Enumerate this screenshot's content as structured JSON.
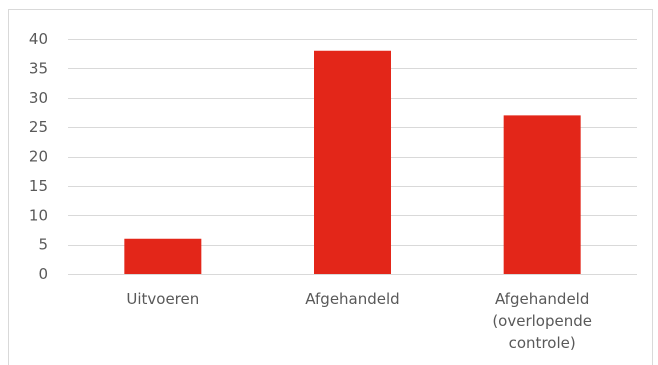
{
  "chart_data": {
    "type": "bar",
    "categories": [
      "Uitvoeren",
      "Afgehandeld",
      "Afgehandeld (overlopende controle)"
    ],
    "category_label_lines": [
      [
        "Uitvoeren"
      ],
      [
        "Afgehandeld"
      ],
      [
        "Afgehandeld",
        "(overlopende",
        "controle)"
      ]
    ],
    "values": [
      6,
      38,
      27
    ],
    "ylim": [
      0,
      40
    ],
    "yticks": [
      0,
      5,
      10,
      15,
      20,
      25,
      30,
      35,
      40
    ],
    "ytick_labels": [
      "0",
      "5",
      "10",
      "15",
      "20",
      "25",
      "30",
      "35",
      "40"
    ],
    "title": "",
    "xlabel": "",
    "ylabel": "",
    "grid": true,
    "legend": "none",
    "bar_color": "#e32619",
    "grid_color": "#d9d9d9",
    "text_color": "#595959"
  }
}
